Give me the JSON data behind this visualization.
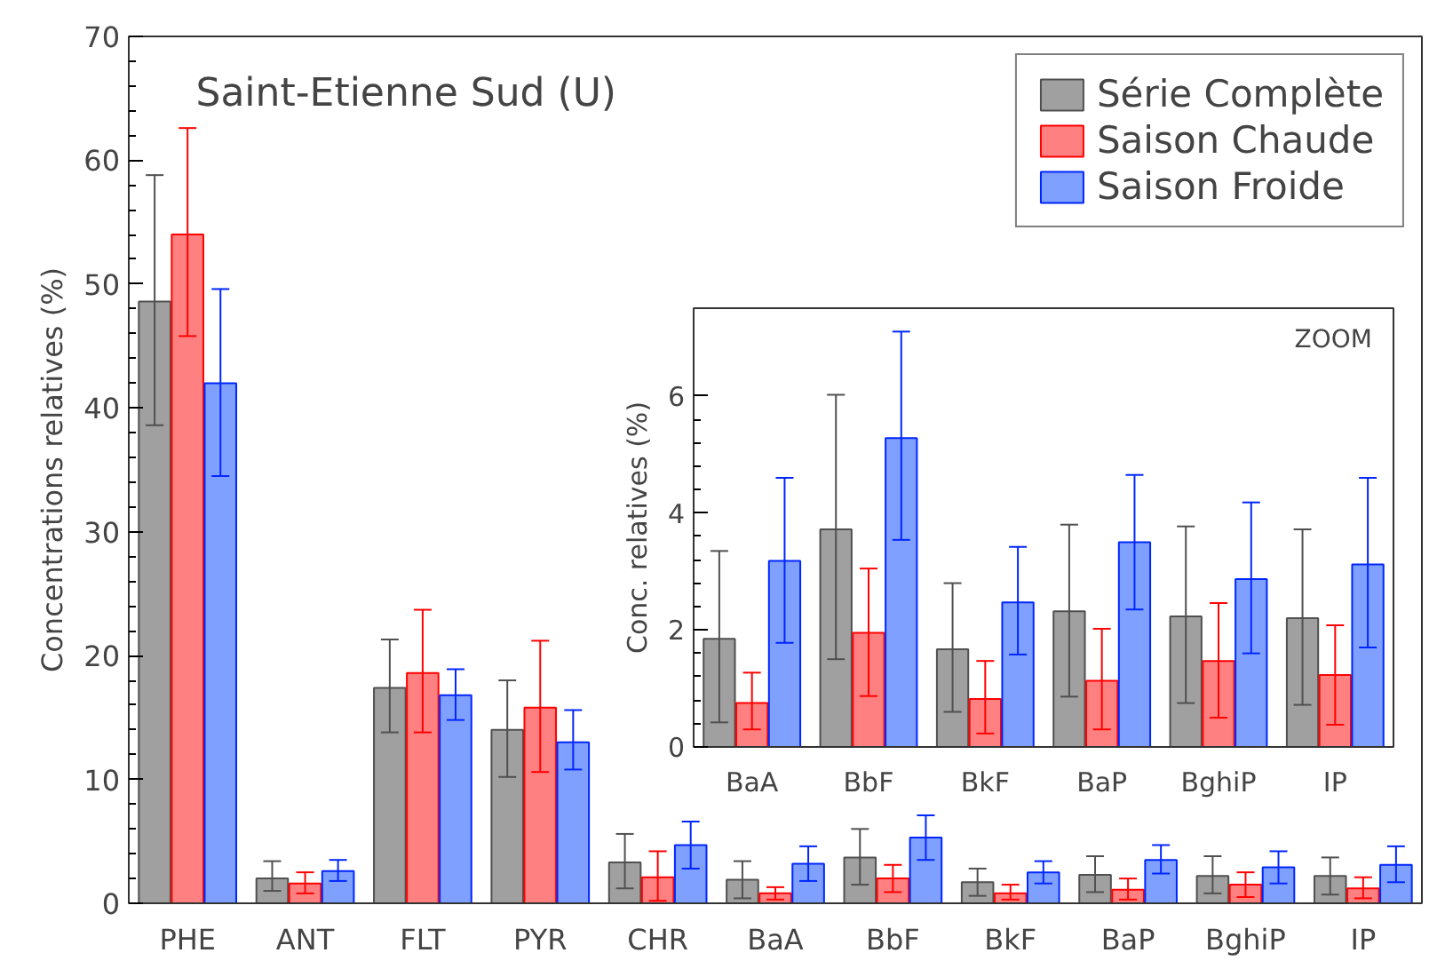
{
  "chart_data": [
    {
      "type": "bar",
      "title": "Saint-Etienne Sud (U)",
      "ylabel": "Concentrations relatives (%)",
      "categories": [
        "PHE",
        "ANT",
        "FLT",
        "PYR",
        "CHR",
        "BaA",
        "BbF",
        "BkF",
        "BaP",
        "BghiP",
        "IP"
      ],
      "series": [
        {
          "name": "Série Complète",
          "color": "#a0a0a0",
          "values": [
            48.6,
            2.0,
            17.4,
            14.0,
            3.3,
            1.9,
            3.7,
            1.7,
            2.3,
            2.2,
            2.2
          ],
          "errors": [
            [
              38.6,
              58.8
            ],
            [
              1.0,
              3.4
            ],
            [
              13.8,
              21.3
            ],
            [
              10.2,
              18.0
            ],
            [
              1.2,
              5.6
            ],
            [
              0.4,
              3.4
            ],
            [
              1.5,
              6.0
            ],
            [
              0.6,
              2.8
            ],
            [
              0.9,
              3.8
            ],
            [
              0.8,
              3.8
            ],
            [
              0.7,
              3.7
            ]
          ]
        },
        {
          "name": "Saison Chaude",
          "color": "#ff8080",
          "values": [
            54.0,
            1.6,
            18.6,
            15.8,
            2.1,
            0.8,
            2.0,
            0.8,
            1.1,
            1.5,
            1.2
          ],
          "errors": [
            [
              45.8,
              62.6
            ],
            [
              0.8,
              2.5
            ],
            [
              13.8,
              23.7
            ],
            [
              10.6,
              21.2
            ],
            [
              0.2,
              4.2
            ],
            [
              0.3,
              1.3
            ],
            [
              0.9,
              3.1
            ],
            [
              0.3,
              1.5
            ],
            [
              0.3,
              2.0
            ],
            [
              0.5,
              2.5
            ],
            [
              0.4,
              2.1
            ]
          ]
        },
        {
          "name": "Saison Froide",
          "color": "#80a0ff",
          "values": [
            42.0,
            2.6,
            16.8,
            13.0,
            4.7,
            3.2,
            5.3,
            2.5,
            3.5,
            2.9,
            3.1
          ],
          "errors": [
            [
              34.5,
              49.6
            ],
            [
              1.8,
              3.5
            ],
            [
              14.8,
              18.9
            ],
            [
              10.8,
              15.6
            ],
            [
              2.8,
              6.6
            ],
            [
              1.8,
              4.6
            ],
            [
              3.5,
              7.1
            ],
            [
              1.6,
              3.4
            ],
            [
              2.4,
              4.7
            ],
            [
              1.6,
              4.2
            ],
            [
              1.7,
              4.6
            ]
          ]
        }
      ],
      "ylim": [
        0,
        70
      ],
      "yticks": [
        0,
        10,
        20,
        30,
        40,
        50,
        60,
        70
      ],
      "legend": "top right",
      "grid": false
    },
    {
      "type": "bar",
      "ylabel": "Conc. relatives (%)",
      "annotations": [
        "ZOOM"
      ],
      "categories": [
        "BaA",
        "BbF",
        "BkF",
        "BaP",
        "BghiP",
        "IP"
      ],
      "series": [
        {
          "color": "#a0a0a0",
          "values": [
            1.85,
            3.72,
            1.67,
            2.32,
            2.23,
            2.2
          ],
          "errors": [
            [
              0.42,
              3.35
            ],
            [
              1.5,
              6.02
            ],
            [
              0.6,
              2.8
            ],
            [
              0.86,
              3.8
            ],
            [
              0.75,
              3.77
            ],
            [
              0.72,
              3.72
            ]
          ]
        },
        {
          "color": "#ff8080",
          "values": [
            0.75,
            1.95,
            0.82,
            1.13,
            1.47,
            1.23
          ],
          "errors": [
            [
              0.3,
              1.27
            ],
            [
              0.87,
              3.05
            ],
            [
              0.23,
              1.47
            ],
            [
              0.3,
              2.02
            ],
            [
              0.5,
              2.46
            ],
            [
              0.38,
              2.08
            ]
          ]
        },
        {
          "color": "#80a0ff",
          "values": [
            3.18,
            5.28,
            2.47,
            3.5,
            2.87,
            3.12
          ],
          "errors": [
            [
              1.78,
              4.6
            ],
            [
              3.54,
              7.1
            ],
            [
              1.58,
              3.42
            ],
            [
              2.35,
              4.65
            ],
            [
              1.6,
              4.18
            ],
            [
              1.7,
              4.6
            ]
          ]
        }
      ],
      "ylim": [
        0,
        7.5
      ],
      "yticks": [
        0,
        2,
        4,
        6
      ],
      "grid": false
    }
  ]
}
